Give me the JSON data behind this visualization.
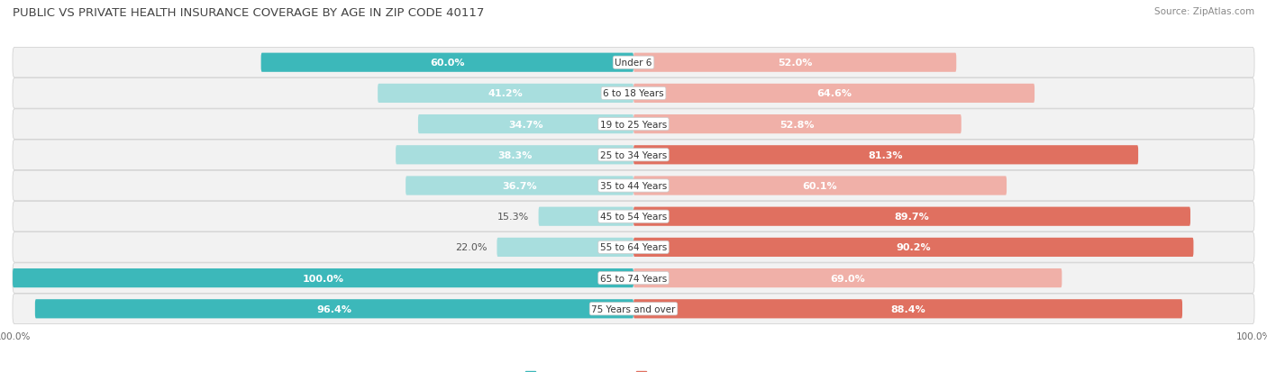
{
  "title": "Public vs Private Health Insurance Coverage by Age in Zip Code 40117",
  "source": "Source: ZipAtlas.com",
  "categories": [
    "Under 6",
    "6 to 18 Years",
    "19 to 25 Years",
    "25 to 34 Years",
    "35 to 44 Years",
    "45 to 54 Years",
    "55 to 64 Years",
    "65 to 74 Years",
    "75 Years and over"
  ],
  "public_values": [
    60.0,
    41.2,
    34.7,
    38.3,
    36.7,
    15.3,
    22.0,
    100.0,
    96.4
  ],
  "private_values": [
    52.0,
    64.6,
    52.8,
    81.3,
    60.1,
    89.7,
    90.2,
    69.0,
    88.4
  ],
  "public_color_strong": "#3cb8ba",
  "public_color_light": "#a8dede",
  "private_color_strong": "#e07060",
  "private_color_light": "#f0b0a8",
  "row_bg": "#f2f2f2",
  "row_border": "#dddddd",
  "bar_height": 0.62,
  "figsize": [
    14.06,
    4.14
  ],
  "dpi": 100,
  "axis_max": 100.0,
  "label_fontsize": 8,
  "title_fontsize": 9.5,
  "source_fontsize": 7.5,
  "legend_fontsize": 8,
  "category_fontsize": 7.5,
  "axis_label_fontsize": 7.5,
  "title_color": "#444444",
  "source_color": "#888888",
  "label_color_dark": "#555555",
  "label_color_white": "#ffffff"
}
